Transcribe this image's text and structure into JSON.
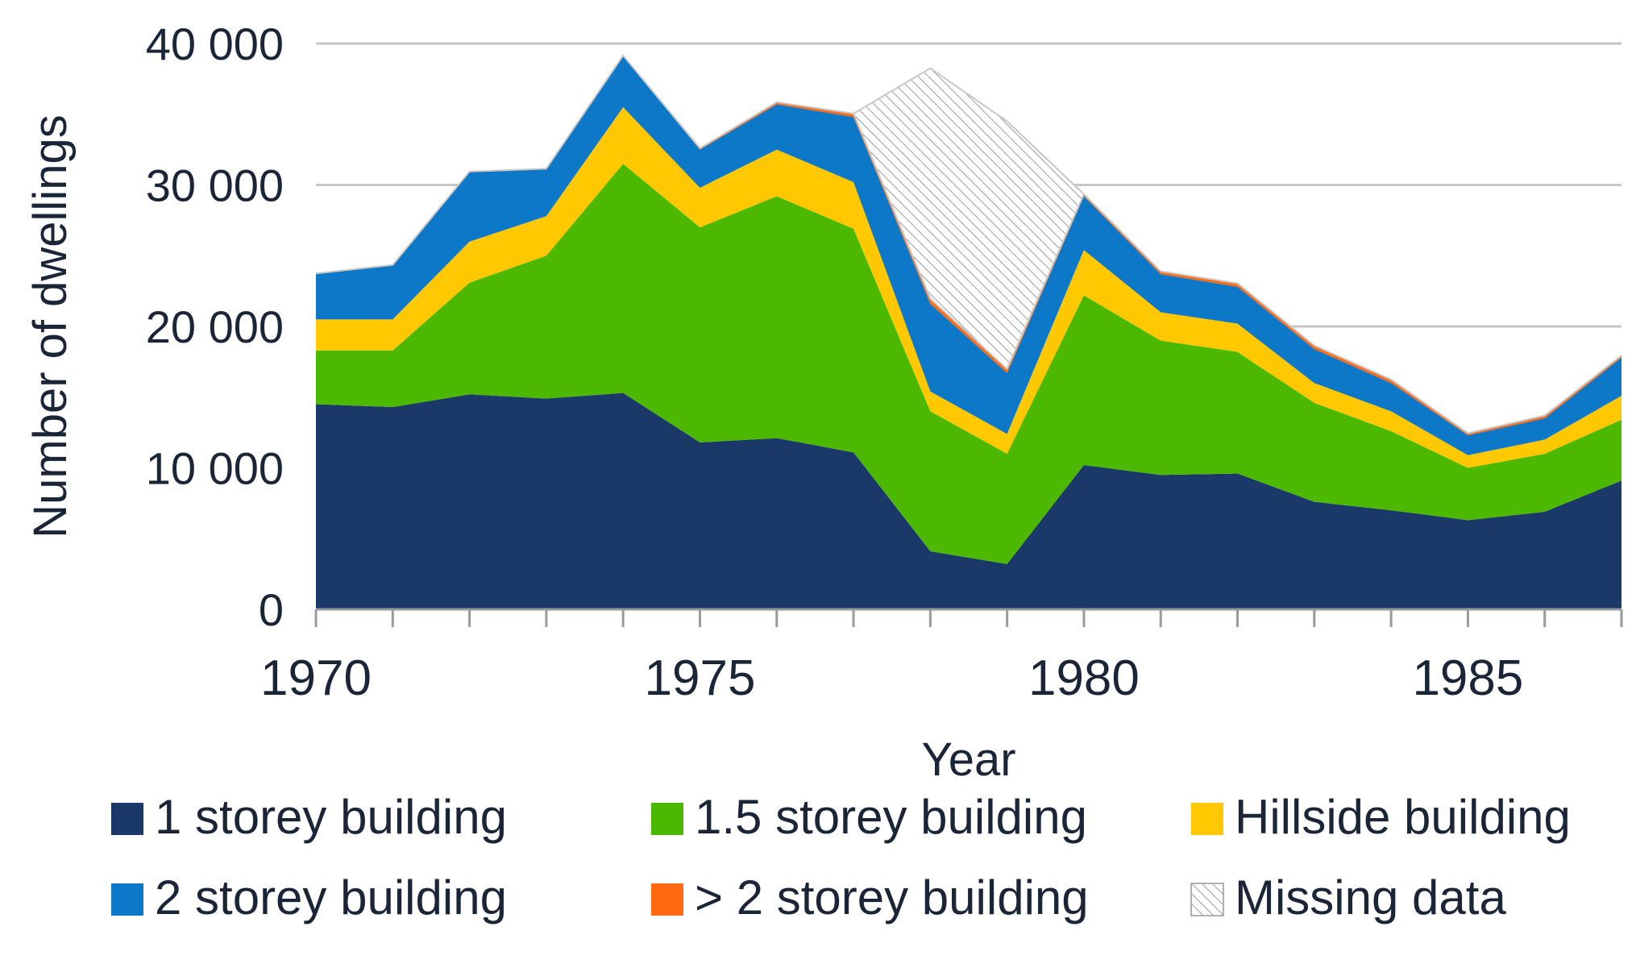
{
  "chart_data": {
    "type": "area",
    "stacked": true,
    "title": "",
    "xlabel": "Year",
    "ylabel": "Number of dwellings",
    "xlim": [
      1970,
      1987
    ],
    "ylim": [
      0,
      40000
    ],
    "x_ticks": [
      1970,
      1975,
      1980,
      1985
    ],
    "x_tick_labels": [
      "1970",
      "1975",
      "1980",
      "1985"
    ],
    "y_ticks": [
      0,
      10000,
      20000,
      30000,
      40000
    ],
    "y_tick_labels": [
      "0",
      "10 000",
      "20 000",
      "30 000",
      "40 000"
    ],
    "grid": true,
    "legend_position": "bottom",
    "x": [
      1970,
      1971,
      1972,
      1973,
      1974,
      1975,
      1976,
      1977,
      1978,
      1979,
      1980,
      1981,
      1982,
      1983,
      1984,
      1985,
      1986,
      1987
    ],
    "series": [
      {
        "name": "1 storey building",
        "color": "#1a3868",
        "values": [
          14500,
          14300,
          15200,
          14900,
          15300,
          11800,
          12100,
          11100,
          4100,
          3200,
          10200,
          9500,
          9600,
          7600,
          7000,
          6300,
          6900,
          9100
        ]
      },
      {
        "name": "1.5 storey building",
        "color": "#4cb800",
        "values": [
          3800,
          4000,
          7900,
          10100,
          16200,
          15200,
          17100,
          15800,
          9900,
          7800,
          12000,
          9500,
          8600,
          7000,
          5600,
          3700,
          4100,
          4300
        ]
      },
      {
        "name": "Hillside building",
        "color": "#ffc800",
        "values": [
          2200,
          2200,
          2900,
          2800,
          4000,
          2800,
          3300,
          3300,
          1400,
          1400,
          3200,
          2000,
          2000,
          1400,
          1400,
          900,
          1000,
          1700
        ]
      },
      {
        "name": "2 storey building",
        "color": "#0e78c8",
        "values": [
          3200,
          3800,
          4900,
          3300,
          3600,
          2700,
          3200,
          4600,
          6200,
          4300,
          3800,
          2700,
          2600,
          2400,
          2000,
          1400,
          1500,
          2700
        ]
      },
      {
        "name": "> 2 storey building",
        "color": "#ff6a12",
        "values": [
          50,
          50,
          50,
          50,
          50,
          100,
          150,
          250,
          350,
          300,
          150,
          200,
          250,
          250,
          250,
          150,
          200,
          150
        ]
      },
      {
        "name": "Missing data",
        "color": "#b0b0b0",
        "pattern": "diagonal-hatch",
        "values": [
          0,
          0,
          0,
          0,
          0,
          0,
          0,
          0,
          16300,
          17500,
          0,
          0,
          0,
          0,
          0,
          0,
          0,
          0
        ]
      }
    ]
  }
}
